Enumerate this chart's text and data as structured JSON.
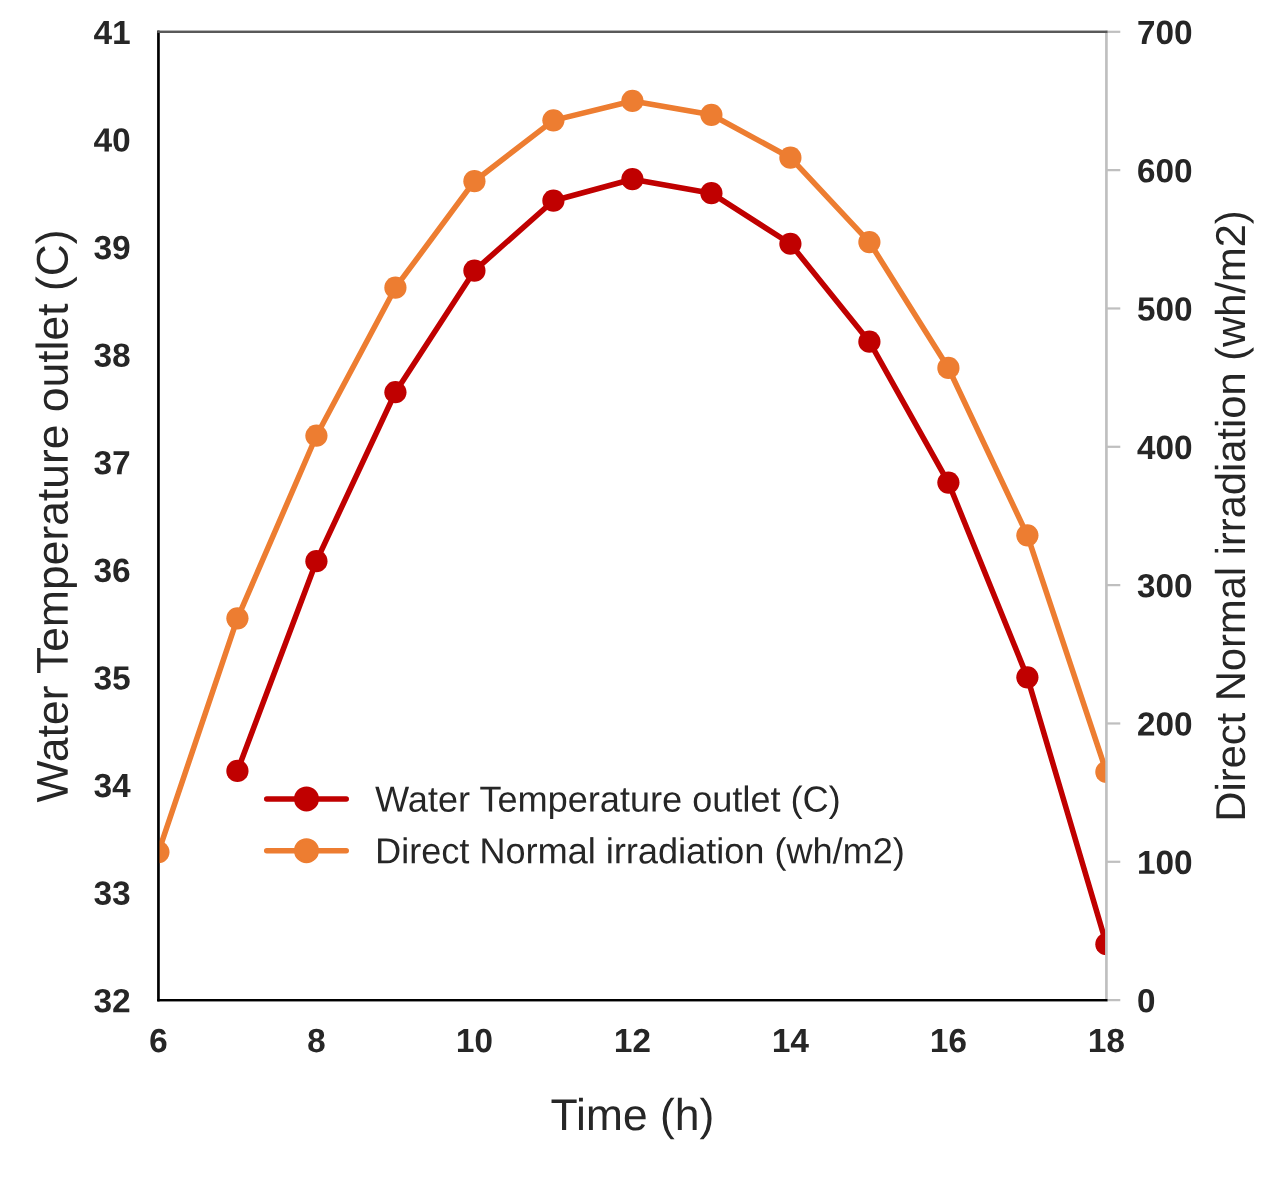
{
  "chart_data": {
    "type": "line",
    "xlabel": "Time (h)",
    "ylabel": "Water Temperature outlet (C)",
    "y2label": "Direct Normal irradiation (wh/m2)",
    "x": [
      6,
      7,
      8,
      9,
      10,
      11,
      12,
      13,
      14,
      15,
      16,
      17,
      18
    ],
    "series": [
      {
        "name": "Water Temperature outlet (C)",
        "color": "#c00000",
        "values": [
          null,
          34.13,
          36.08,
          37.65,
          38.78,
          39.43,
          39.63,
          39.5,
          39.03,
          38.12,
          36.81,
          35.0,
          32.52
        ]
      },
      {
        "name": "Direct Normal irradiation (wh/m2)",
        "color": "#ed7d31",
        "axis": "y2",
        "values": [
          107,
          276,
          408,
          515,
          592,
          636,
          650,
          640,
          609,
          548,
          457,
          336,
          165
        ]
      }
    ],
    "xlim": [
      6,
      18
    ],
    "xticks": [
      6,
      8,
      10,
      12,
      14,
      16,
      18
    ],
    "ylim": [
      32,
      41
    ],
    "yticks": [
      32,
      33,
      34,
      35,
      36,
      37,
      38,
      39,
      40,
      41
    ],
    "y2lim": [
      0,
      700
    ],
    "y2ticks": [
      0,
      100,
      200,
      300,
      400,
      500,
      600,
      700
    ],
    "grid": false,
    "legend": "bottom left",
    "marker": "circle",
    "line_style": "solid"
  }
}
